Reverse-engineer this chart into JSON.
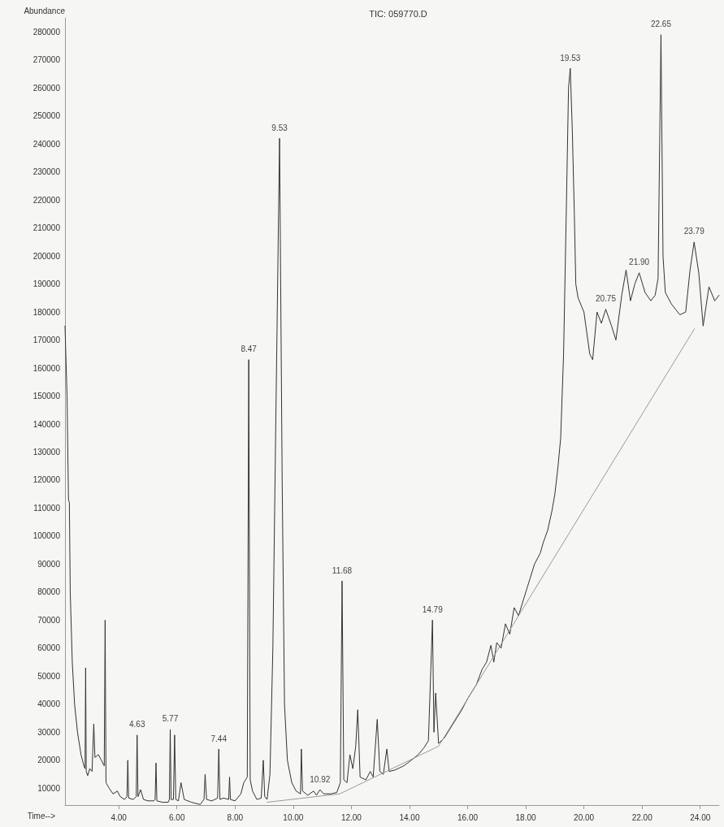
{
  "chart_data": {
    "type": "line",
    "title": "TIC: 059770.D",
    "xlabel": "Time-->",
    "ylabel": "Abundance",
    "grid": false,
    "xlim": [
      2.15,
      24.65
    ],
    "xticks": [
      {
        "value": 4,
        "label": "4.00"
      },
      {
        "value": 6,
        "label": "6.00"
      },
      {
        "value": 8,
        "label": "8.00"
      },
      {
        "value": 10,
        "label": "10.00"
      },
      {
        "value": 12,
        "label": "12.00"
      },
      {
        "value": 14,
        "label": "14.00"
      },
      {
        "value": 16,
        "label": "16.00"
      },
      {
        "value": 18,
        "label": "18.00"
      },
      {
        "value": 20,
        "label": "20.00"
      },
      {
        "value": 22,
        "label": "22.00"
      },
      {
        "value": 24,
        "label": "24.00"
      }
    ],
    "ylim": [
      4000,
      285000
    ],
    "yticks": [
      10000,
      20000,
      30000,
      40000,
      50000,
      60000,
      70000,
      80000,
      90000,
      100000,
      110000,
      120000,
      130000,
      140000,
      150000,
      160000,
      170000,
      180000,
      190000,
      200000,
      210000,
      220000,
      230000,
      240000,
      250000,
      260000,
      270000,
      280000
    ],
    "series": [
      {
        "color": "#333333",
        "x": [
          2.15,
          2.22,
          2.27,
          2.3,
          2.33,
          2.4,
          2.48,
          2.58,
          2.7,
          2.8,
          2.84,
          2.86,
          2.88,
          2.93,
          3.0,
          3.08,
          3.14,
          3.18,
          3.3,
          3.4,
          3.5,
          3.53,
          3.56,
          3.67,
          3.8,
          3.95,
          4.05,
          4.2,
          4.28,
          4.31,
          4.34,
          4.5,
          4.6,
          4.63,
          4.66,
          4.75,
          4.85,
          5.0,
          5.2,
          5.25,
          5.28,
          5.31,
          5.5,
          5.7,
          5.74,
          5.77,
          5.8,
          5.88,
          5.92,
          5.96,
          6.05,
          6.14,
          6.25,
          6.5,
          6.8,
          6.93,
          6.97,
          7.02,
          7.2,
          7.4,
          7.44,
          7.48,
          7.6,
          7.78,
          7.81,
          7.84,
          8.0,
          8.2,
          8.3,
          8.42,
          8.47,
          8.52,
          8.6,
          8.75,
          8.9,
          8.97,
          9.02,
          9.1,
          9.2,
          9.3,
          9.4,
          9.53,
          9.62,
          9.7,
          9.8,
          9.95,
          10.1,
          10.25,
          10.28,
          10.32,
          10.5,
          10.7,
          10.8,
          10.92,
          11.05,
          11.3,
          11.5,
          11.62,
          11.68,
          11.74,
          11.85,
          11.95,
          12.05,
          12.15,
          12.22,
          12.3,
          12.5,
          12.65,
          12.75,
          12.89,
          12.98,
          13.1,
          13.22,
          13.3,
          13.5,
          13.8,
          14.0,
          14.3,
          14.5,
          14.65,
          14.79,
          14.84,
          14.9,
          15.0,
          15.2,
          15.5,
          15.8,
          16.0,
          16.3,
          16.5,
          16.65,
          16.8,
          16.9,
          17.0,
          17.15,
          17.3,
          17.45,
          17.6,
          17.75,
          18.0,
          18.15,
          18.3,
          18.5,
          18.6,
          18.75,
          18.9,
          19.0,
          19.1,
          19.2,
          19.3,
          19.4,
          19.47,
          19.53,
          19.6,
          19.67,
          19.72,
          19.8,
          20.0,
          20.2,
          20.3,
          20.45,
          20.6,
          20.75,
          20.95,
          21.1,
          21.3,
          21.45,
          21.6,
          21.75,
          21.9,
          22.1,
          22.3,
          22.45,
          22.55,
          22.65,
          22.72,
          22.8,
          23.0,
          23.3,
          23.5,
          23.65,
          23.79,
          23.95,
          24.1,
          24.3,
          24.5,
          24.65
        ],
        "values": [
          175000,
          150000,
          113000,
          112000,
          80000,
          55000,
          40000,
          30000,
          22000,
          18000,
          17000,
          53000,
          16000,
          14500,
          17000,
          16000,
          33000,
          21000,
          22000,
          20000,
          18000,
          70000,
          12000,
          10000,
          8000,
          9000,
          7000,
          6000,
          7000,
          20000,
          6500,
          6000,
          7000,
          29000,
          7000,
          9500,
          6000,
          5500,
          5500,
          6000,
          19000,
          5500,
          5000,
          5000,
          6000,
          31000,
          6000,
          6000,
          29000,
          6000,
          5500,
          12000,
          6000,
          5000,
          4200,
          6000,
          15000,
          6000,
          5500,
          6500,
          24000,
          6000,
          6500,
          6000,
          14000,
          6000,
          5500,
          8000,
          12000,
          14000,
          163000,
          13000,
          9000,
          6000,
          6500,
          20000,
          7000,
          6000,
          15000,
          60000,
          140000,
          242000,
          120000,
          40000,
          20000,
          12000,
          9000,
          8000,
          24000,
          9000,
          7500,
          9000,
          7500,
          9500,
          8000,
          8000,
          8500,
          12000,
          84000,
          13000,
          12000,
          22000,
          17000,
          25000,
          38000,
          14000,
          13000,
          16000,
          14000,
          34600,
          16000,
          15000,
          24000,
          16000,
          16500,
          18000,
          19500,
          22000,
          24500,
          27000,
          70000,
          30000,
          44000,
          26000,
          28000,
          33000,
          38000,
          42000,
          47000,
          52500,
          55000,
          61000,
          55000,
          62000,
          60000,
          68700,
          65000,
          74500,
          71600,
          80000,
          85000,
          90000,
          94000,
          97700,
          102000,
          109000,
          115000,
          124000,
          135000,
          165000,
          220000,
          260000,
          267000,
          245000,
          215000,
          190000,
          185000,
          180000,
          165000,
          163000,
          180000,
          176000,
          181000,
          175000,
          170000,
          186000,
          195000,
          184000,
          190000,
          194000,
          187000,
          184000,
          186000,
          192000,
          279000,
          200000,
          187000,
          183000,
          179000,
          180000,
          195000,
          205000,
          194000,
          175000,
          189000,
          184000,
          186000
        ]
      },
      {
        "color": "#9a9a9a",
        "x": [
          9.1,
          11.6,
          12.4,
          15.0,
          23.8
        ],
        "values": [
          5000,
          8000,
          12000,
          25000,
          174000
        ]
      }
    ],
    "annotations": [
      {
        "text": "4.63",
        "x": 4.63,
        "y": 29000
      },
      {
        "text": "5.77",
        "x": 5.77,
        "y": 31000
      },
      {
        "text": "7.44",
        "x": 7.44,
        "y": 24000
      },
      {
        "text": "8.47",
        "x": 8.47,
        "y": 163000
      },
      {
        "text": "9.53",
        "x": 9.53,
        "y": 242000
      },
      {
        "text": "10.92",
        "x": 10.92,
        "y": 9500
      },
      {
        "text": "11.68",
        "x": 11.68,
        "y": 84000
      },
      {
        "text": "14.79",
        "x": 14.79,
        "y": 70000
      },
      {
        "text": "19.53",
        "x": 19.53,
        "y": 267000
      },
      {
        "text": "20.75",
        "x": 20.75,
        "y": 181000
      },
      {
        "text": "21.90",
        "x": 21.9,
        "y": 194000
      },
      {
        "text": "22.65",
        "x": 22.65,
        "y": 279000
      },
      {
        "text": "23.79",
        "x": 23.79,
        "y": 205000
      }
    ]
  }
}
